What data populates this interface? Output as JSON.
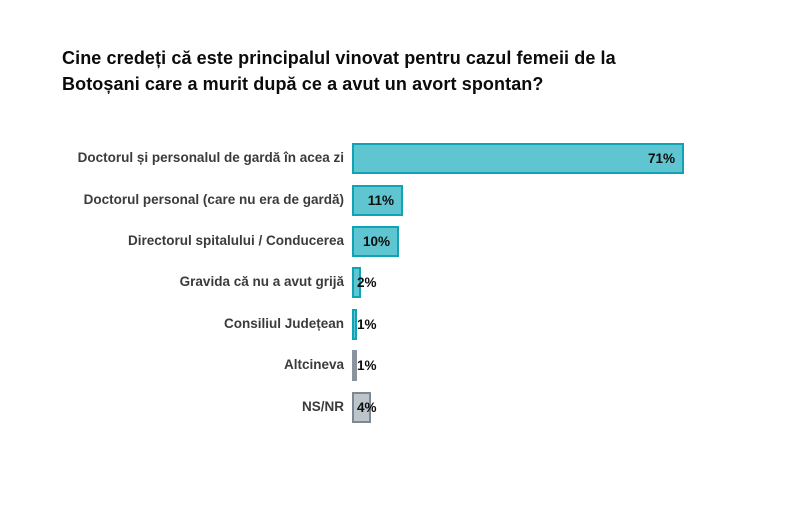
{
  "title": {
    "line1": "Cine credeți că este principalul vinovat pentru cazul femeii de la",
    "line2": "Botoșani care a murit după ce a avut un avort spontan?"
  },
  "colors": {
    "teal_fill": "#5FC5D0",
    "teal_border": "#10A3B5",
    "gray_fill": "#BCC5CC",
    "gray_border": "#7D8992",
    "gray_solid_fill": "#8B939D",
    "gray_solid_border": "#8B939D",
    "title_text": "#0B0B0B",
    "label_text": "#3B3B3B",
    "value_text": "#0D0D0D"
  },
  "chart_data": {
    "type": "bar",
    "orientation": "horizontal",
    "title": "Cine credeți că este principalul vinovat pentru cazul femeii de la Botoșani care a murit după ce a avut un avort spontan?",
    "xlabel": "",
    "ylabel": "",
    "unit": "%",
    "xlim": [
      0,
      75
    ],
    "grid": false,
    "legend": false,
    "categories": [
      "Doctorul și personalul de gardă în acea zi",
      "Doctorul personal (care nu era de gardă)",
      "Directorul spitalului / Conducerea",
      "Gravida că nu a avut grijă",
      "Consiliul Județean",
      "Altcineva",
      "NS/NR"
    ],
    "values": [
      71,
      11,
      10,
      2,
      1,
      1,
      4
    ],
    "value_labels": [
      "71%",
      "11%",
      "10%",
      "2%",
      "1%",
      "1%",
      "4%"
    ],
    "bar_styles": [
      "teal",
      "teal",
      "teal",
      "teal",
      "teal",
      "gray-solid",
      "gray"
    ]
  }
}
